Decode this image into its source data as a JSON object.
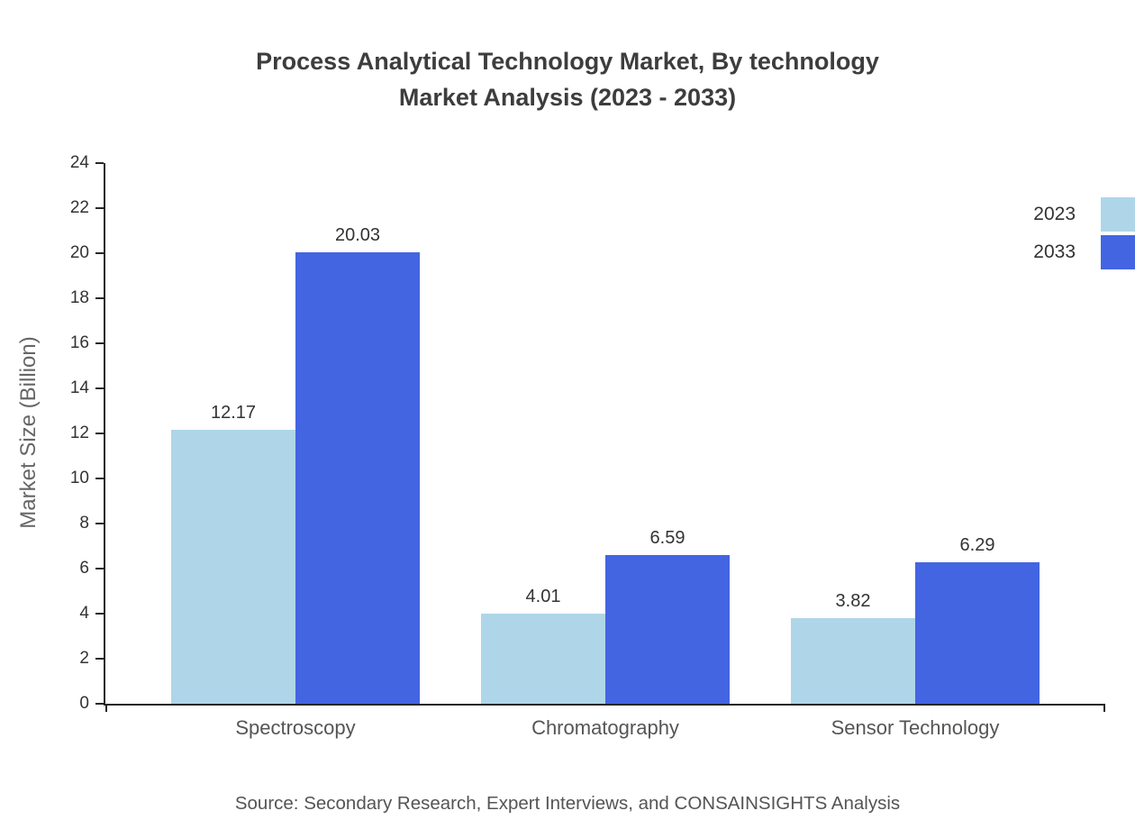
{
  "title": {
    "line1": "Process Analytical Technology Market, By technology",
    "line2": "Market Analysis (2023 - 2033)"
  },
  "source": "Source: Secondary Research, Expert Interviews, and CONSAINSIGHTS Analysis",
  "chart_data": {
    "type": "bar",
    "title": "Process Analytical Technology Market, By technology Market Analysis (2023 - 2033)",
    "xlabel": "",
    "ylabel": "Market Size (Billion)",
    "categories": [
      "Spectroscopy",
      "Chromatography",
      "Sensor Technology"
    ],
    "series": [
      {
        "name": "2023",
        "color": "#aed6e8",
        "values": [
          12.17,
          4.01,
          3.82
        ]
      },
      {
        "name": "2033",
        "color": "#4365e2",
        "values": [
          20.03,
          6.59,
          6.29
        ]
      }
    ],
    "ylim": [
      0,
      24
    ],
    "yticks": [
      0,
      2,
      4,
      6,
      8,
      10,
      12,
      14,
      16,
      18,
      20,
      22,
      24
    ],
    "grid": false,
    "legend_position": "top-right",
    "value_labels": true,
    "value_label_decimals": 2
  }
}
